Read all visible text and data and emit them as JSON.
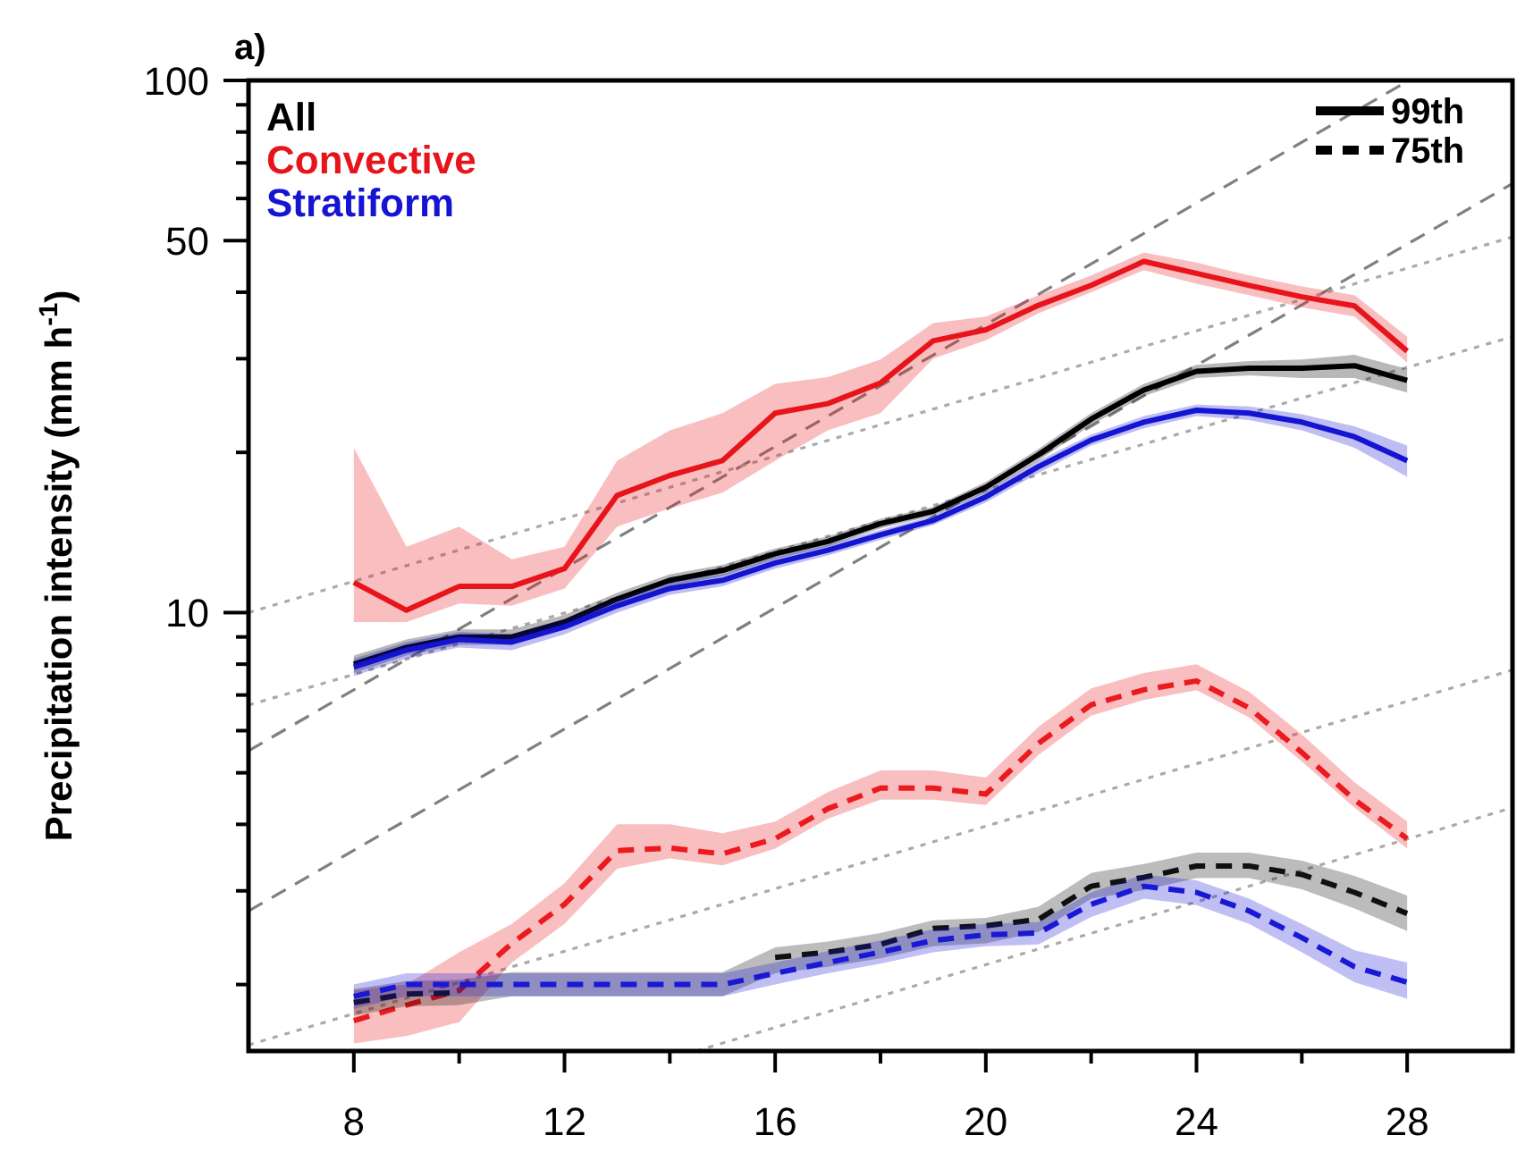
{
  "chart_data": {
    "type": "line",
    "title": "a)",
    "ylabel": "Precipitation intensity (mm h$^{-1}$)",
    "log": "y",
    "legend": "top left",
    "annotations": [
      "99th",
      "75th"
    ],
    "xlim": [
      6,
      30
    ],
    "xticks": [
      8,
      {
        "value": 10,
        "label": null
      },
      12,
      {
        "value": 14,
        "label": null
      },
      16,
      {
        "value": 18,
        "label": null
      },
      20,
      {
        "value": 22,
        "label": null
      },
      24,
      {
        "value": 26,
        "label": null
      },
      28
    ],
    "ylim": [
      1.5,
      100
    ],
    "yticks": [
      {
        "value": 2,
        "label": null
      },
      {
        "value": 3,
        "label": null
      },
      {
        "value": 4,
        "label": null
      },
      {
        "value": 5,
        "label": null
      },
      {
        "value": 6,
        "label": null
      },
      {
        "value": 7,
        "label": null
      },
      {
        "value": 8,
        "label": null
      },
      {
        "value": 9,
        "label": null
      },
      10,
      {
        "value": 20,
        "label": null
      },
      {
        "value": 30,
        "label": null
      },
      {
        "value": 40,
        "label": null
      },
      50,
      {
        "value": 60,
        "label": null
      },
      {
        "value": 70,
        "label": null
      },
      {
        "value": 80,
        "label": null
      },
      {
        "value": 90,
        "label": null
      },
      100
    ],
    "x": [
      8,
      9,
      10,
      11,
      12,
      13,
      14,
      15,
      16,
      17,
      18,
      19,
      20,
      21,
      22,
      23,
      24,
      25,
      26,
      27,
      28
    ],
    "series": [
      {
        "type": "line",
        "color": "#808080",
        "line_style": "dashed",
        "x": [
          6,
          28.03
        ],
        "values": [
          5.5,
          100
        ]
      },
      {
        "type": "line",
        "color": "#808080",
        "line_style": "dashed",
        "x": [
          6,
          30
        ],
        "values": [
          2.75,
          64
        ]
      },
      {
        "type": "line",
        "color": "#aaaaaa",
        "line_style": "dotted",
        "x": [
          6,
          30
        ],
        "values": [
          10,
          50.8
        ]
      },
      {
        "type": "line",
        "color": "#aaaaaa",
        "line_style": "dotted",
        "x": [
          6,
          30
        ],
        "values": [
          6.7,
          33
        ]
      },
      {
        "type": "line",
        "color": "#aaaaaa",
        "line_style": "dotted",
        "x": [
          6,
          30
        ],
        "values": [
          1.54,
          7.8
        ]
      },
      {
        "type": "line",
        "color": "#aaaaaa",
        "line_style": "dotted",
        "x": [
          14.5,
          30
        ],
        "values": [
          1.5,
          4.3
        ]
      },
      {
        "name": "All",
        "color": "#000000",
        "line_style": "solid",
        "values": [
          8.0,
          8.6,
          9.0,
          9.0,
          9.6,
          10.6,
          11.5,
          12.0,
          12.9,
          13.6,
          14.7,
          15.5,
          17.2,
          19.8,
          23.1,
          26.2,
          28.4,
          28.8,
          28.8,
          29.1,
          27.3
        ],
        "lower": [
          7.7,
          8.3,
          8.7,
          8.7,
          9.3,
          10.3,
          11.2,
          11.7,
          12.6,
          13.3,
          14.4,
          15.2,
          16.8,
          19.3,
          22.5,
          25.5,
          27.6,
          27.9,
          27.6,
          27.6,
          25.9
        ],
        "upper": [
          8.3,
          8.9,
          9.3,
          9.3,
          9.9,
          10.9,
          11.8,
          12.3,
          13.2,
          13.9,
          15.0,
          15.8,
          17.6,
          20.3,
          23.7,
          26.9,
          29.2,
          29.7,
          29.9,
          30.5,
          28.7
        ]
      },
      {
        "name": "Convective",
        "color": "#e8141b",
        "line_style": "solid",
        "values": [
          11.4,
          10.1,
          11.2,
          11.2,
          12.1,
          16.6,
          18.1,
          19.3,
          23.7,
          24.7,
          27.0,
          32.4,
          34.0,
          37.8,
          41.2,
          45.7,
          43.4,
          41.2,
          39.2,
          37.7,
          31.0
        ],
        "lower": [
          9.6,
          9.6,
          10.4,
          10.3,
          11.1,
          14.5,
          15.7,
          16.8,
          19.3,
          22.0,
          23.7,
          30.0,
          32.5,
          36.5,
          40.0,
          44.0,
          41.5,
          39.5,
          37.5,
          36.0,
          29.5
        ],
        "upper": [
          20.4,
          13.3,
          14.5,
          12.6,
          13.3,
          19.3,
          22.0,
          23.7,
          26.9,
          27.7,
          29.9,
          35.0,
          36.0,
          39.5,
          43.0,
          47.5,
          45.5,
          43.0,
          41.0,
          39.5,
          33.0
        ]
      },
      {
        "name": "Stratiform",
        "color": "#1414d2",
        "line_style": "solid",
        "values": [
          7.9,
          8.5,
          8.9,
          8.8,
          9.4,
          10.3,
          11.1,
          11.5,
          12.4,
          13.1,
          14.0,
          14.9,
          16.5,
          18.8,
          21.1,
          22.8,
          24.0,
          23.7,
          22.8,
          21.4,
          19.3
        ],
        "lower": [
          7.6,
          8.2,
          8.6,
          8.5,
          9.1,
          10.0,
          10.8,
          11.2,
          12.1,
          12.8,
          13.7,
          14.6,
          16.1,
          18.3,
          20.6,
          22.2,
          23.4,
          23.0,
          22.0,
          20.4,
          18.0
        ],
        "upper": [
          8.2,
          8.8,
          9.2,
          9.1,
          9.7,
          10.6,
          11.4,
          11.8,
          12.7,
          13.4,
          14.3,
          15.2,
          16.9,
          19.3,
          21.6,
          23.4,
          24.6,
          24.4,
          23.6,
          22.4,
          20.6
        ]
      },
      {
        "color": "#ea1a1e",
        "line_style": "dashed",
        "values": [
          1.71,
          1.83,
          1.95,
          2.39,
          2.83,
          3.57,
          3.61,
          3.52,
          3.76,
          4.28,
          4.68,
          4.68,
          4.56,
          5.68,
          6.71,
          7.16,
          7.44,
          6.62,
          5.46,
          4.45,
          3.76
        ],
        "lower": [
          1.55,
          1.6,
          1.7,
          2.2,
          2.6,
          3.3,
          3.45,
          3.35,
          3.6,
          4.1,
          4.45,
          4.45,
          4.35,
          5.4,
          6.4,
          6.85,
          7.15,
          6.35,
          5.25,
          4.3,
          3.6
        ],
        "upper": [
          1.95,
          2.0,
          2.3,
          2.6,
          3.1,
          4.0,
          4.0,
          3.85,
          4.05,
          4.6,
          5.05,
          5.05,
          4.9,
          6.1,
          7.2,
          7.7,
          8.0,
          7.1,
          5.9,
          4.8,
          4.05
        ]
      },
      {
        "color": "#101010",
        "line_style": "dashed",
        "values": [
          1.85,
          1.92,
          1.93,
          null,
          null,
          null,
          null,
          null,
          2.25,
          2.3,
          2.38,
          2.55,
          2.58,
          2.65,
          3.06,
          3.18,
          3.34,
          3.34,
          3.22,
          2.98,
          2.72
        ],
        "lower": [
          1.75,
          1.82,
          1.83,
          1.9,
          1.9,
          1.9,
          1.9,
          1.9,
          2.1,
          2.16,
          2.24,
          2.36,
          2.39,
          2.51,
          2.9,
          3.01,
          3.17,
          3.17,
          3.02,
          2.78,
          2.52
        ],
        "upper": [
          1.96,
          2.03,
          2.04,
          2.11,
          2.11,
          2.11,
          2.11,
          2.11,
          2.35,
          2.41,
          2.5,
          2.64,
          2.67,
          2.8,
          3.24,
          3.37,
          3.54,
          3.54,
          3.42,
          3.2,
          2.94
        ]
      },
      {
        "color": "#1818d6",
        "line_style": "dashed",
        "values": [
          1.9,
          2.0,
          2.0,
          2.0,
          2.0,
          2.0,
          2.0,
          2.0,
          2.1,
          2.2,
          2.3,
          2.42,
          2.48,
          2.5,
          2.83,
          3.06,
          2.98,
          2.75,
          2.45,
          2.16,
          2.02
        ],
        "lower": [
          1.8,
          1.9,
          1.9,
          1.9,
          1.9,
          1.9,
          1.9,
          1.9,
          2.0,
          2.1,
          2.19,
          2.3,
          2.36,
          2.38,
          2.68,
          2.9,
          2.82,
          2.6,
          2.3,
          2.02,
          1.88
        ],
        "upper": [
          2.0,
          2.1,
          2.1,
          2.1,
          2.1,
          2.1,
          2.1,
          2.1,
          2.2,
          2.31,
          2.42,
          2.54,
          2.6,
          2.62,
          2.98,
          3.22,
          3.14,
          2.9,
          2.6,
          2.32,
          2.2
        ]
      }
    ]
  }
}
